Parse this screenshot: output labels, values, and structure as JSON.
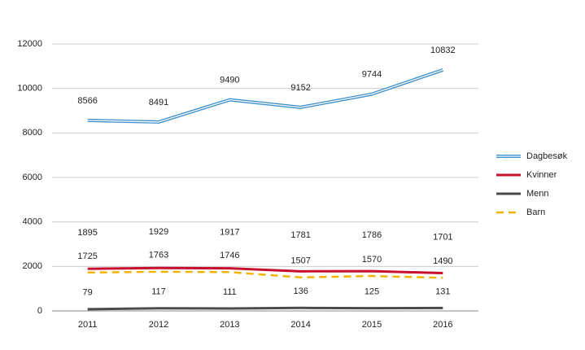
{
  "chart_data": {
    "type": "line",
    "categories": [
      "2011",
      "2012",
      "2013",
      "2014",
      "2015",
      "2016"
    ],
    "series": [
      {
        "name": "Dagbesøk",
        "color": "#3f8fcb",
        "style": "double",
        "values": [
          8566,
          8491,
          9490,
          9152,
          9744,
          10832
        ]
      },
      {
        "name": "Kvinner",
        "color": "#c8102e",
        "style": "solid",
        "values": [
          1895,
          1929,
          1917,
          1781,
          1786,
          1701
        ]
      },
      {
        "name": "Menn",
        "color": "#4a4a4a",
        "style": "solid",
        "values": [
          79,
          117,
          111,
          136,
          125,
          131
        ]
      },
      {
        "name": "Barn",
        "color": "#f2b300",
        "style": "dashed",
        "values": [
          1725,
          1763,
          1746,
          1507,
          1570,
          1490
        ]
      }
    ],
    "ylim": [
      0,
      12000
    ],
    "yticks": [
      0,
      2000,
      4000,
      6000,
      8000,
      10000,
      12000
    ],
    "grid": true,
    "legend": "right"
  }
}
